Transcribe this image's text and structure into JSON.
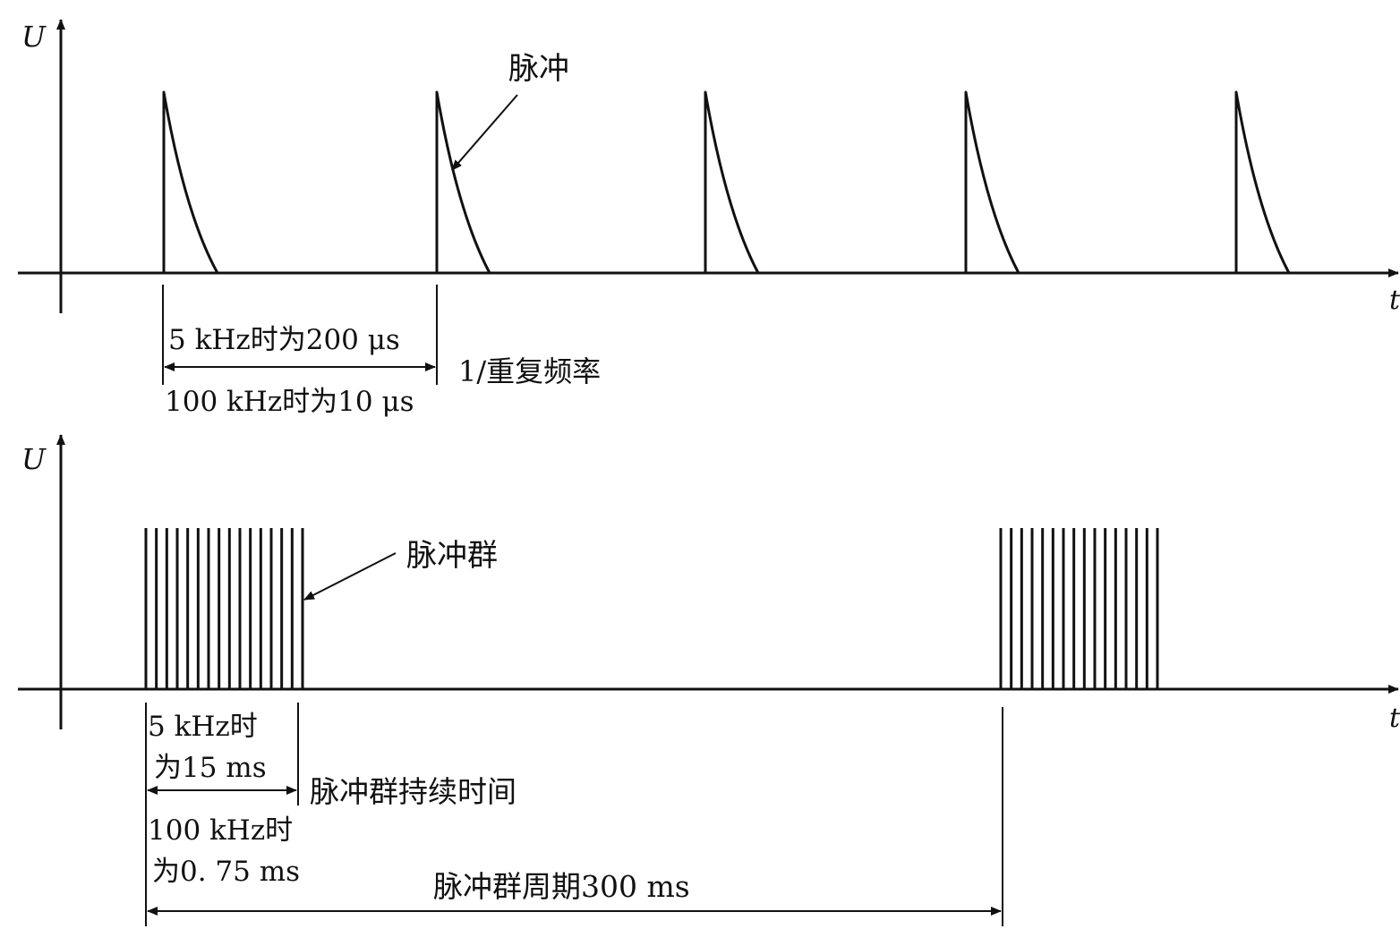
{
  "colors": {
    "ink": "#111111",
    "background": "#ffffff"
  },
  "top": {
    "y_axis_label": "U",
    "x_axis_label": "t",
    "pulse_label": "脉冲",
    "period_label_5k": "5 kHz时为200 μs",
    "period_label_100k": "100 kHz时为10 μs",
    "period_name": "1/重复频率"
  },
  "bottom": {
    "y_axis_label": "U",
    "x_axis_label": "t",
    "burst_label": "脉冲群",
    "duration_5k_line1": "5 kHz时",
    "duration_5k_line2": "为15 ms",
    "duration_name": "脉冲群持续时间",
    "duration_100k_line1": "100 kHz时",
    "duration_100k_line2": "为0. 75 ms",
    "burst_period": "脉冲群周期300 ms"
  }
}
